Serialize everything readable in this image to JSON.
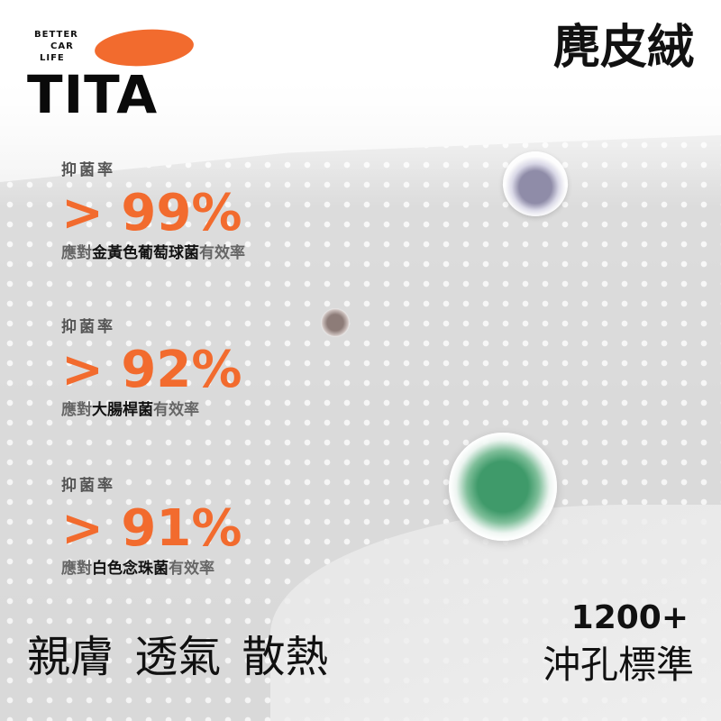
{
  "brand": {
    "tagline": [
      "BETTER",
      "CAR",
      "LIFE"
    ],
    "name": "TITA",
    "accent": "#f26b2e"
  },
  "title": "麂皮絨",
  "stats": [
    {
      "label": "抑菌率",
      "value": "> 99%",
      "desc_pre": "應對",
      "desc_main": "金黃色葡萄球菌",
      "desc_post": "有效率"
    },
    {
      "label": "抑菌率",
      "value": "> 92%",
      "desc_pre": "應對",
      "desc_main": "大腸桿菌",
      "desc_post": "有效率"
    },
    {
      "label": "抑菌率",
      "value": "> 91%",
      "desc_pre": "應對",
      "desc_main": "白色念珠菌",
      "desc_post": "有效率"
    }
  ],
  "features": "親膚 透氣 散熱",
  "perforation": {
    "count": "1200+",
    "label": "沖孔標準"
  }
}
